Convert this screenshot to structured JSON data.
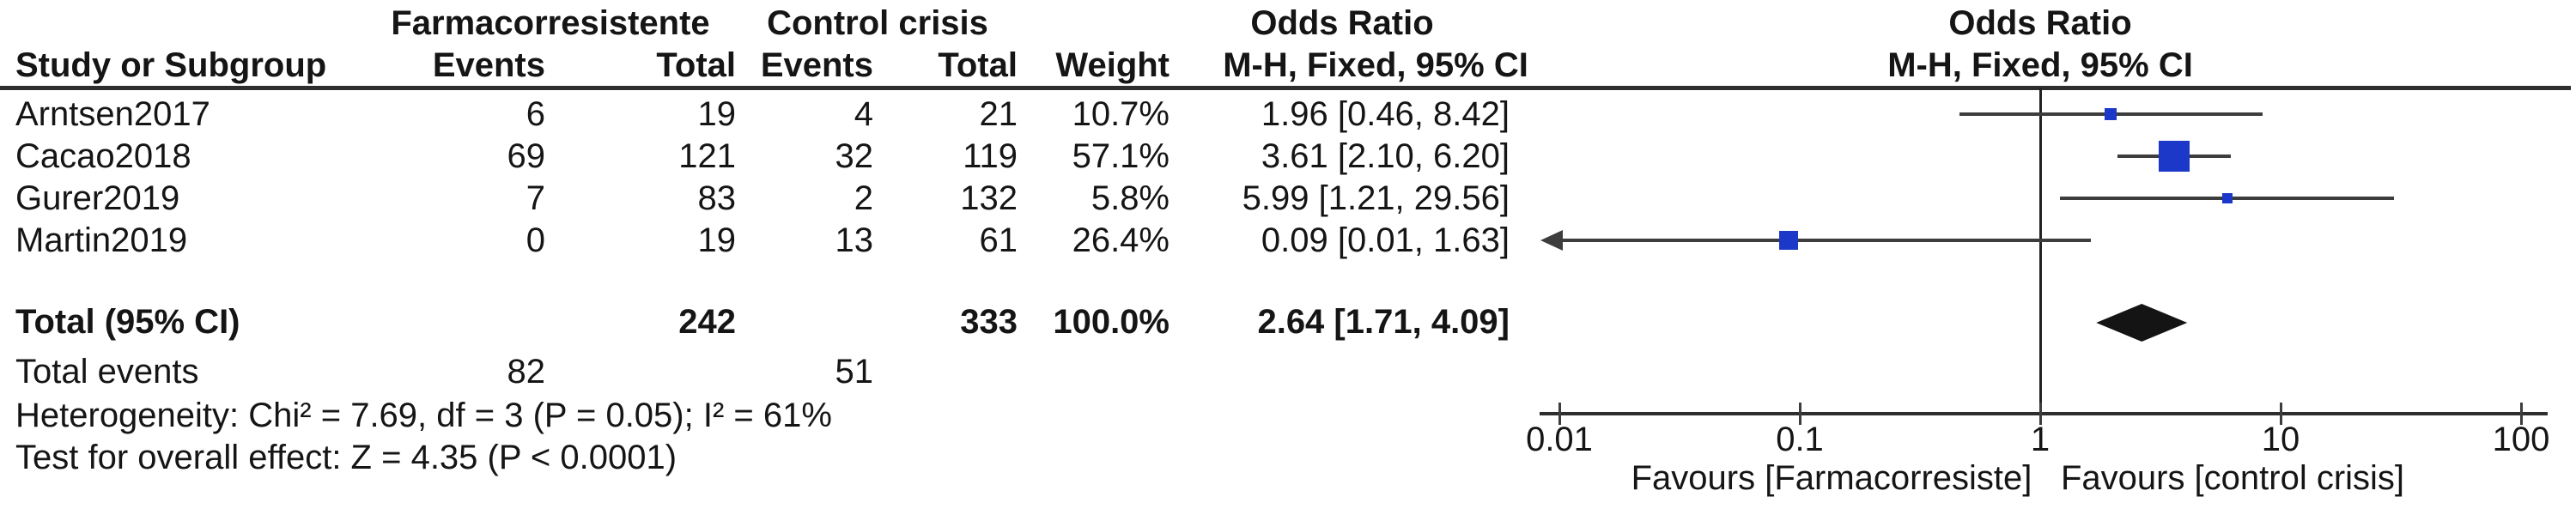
{
  "header": {
    "group_experimental": "Farmacorresistente",
    "group_control": "Control crisis",
    "study_col": "Study or Subgroup",
    "events_col": "Events",
    "total_col": "Total",
    "weight_col": "Weight",
    "or_table_title": "Odds Ratio",
    "or_table_sub": "M-H, Fixed, 95% CI",
    "or_plot_title": "Odds Ratio",
    "or_plot_sub": "M-H, Fixed, 95% CI"
  },
  "table": {
    "rows": [
      {
        "study": "Arntsen2017",
        "e1": "6",
        "t1": "19",
        "e2": "4",
        "t2": "21",
        "weight": "10.7%",
        "ci": "1.96 [0.46, 8.42]"
      },
      {
        "study": "Cacao2018",
        "e1": "69",
        "t1": "121",
        "e2": "32",
        "t2": "119",
        "weight": "57.1%",
        "ci": "3.61 [2.10, 6.20]"
      },
      {
        "study": "Gurer2019",
        "e1": "7",
        "t1": "83",
        "e2": "2",
        "t2": "132",
        "weight": "5.8%",
        "ci": "5.99 [1.21, 29.56]"
      },
      {
        "study": "Martin2019",
        "e1": "0",
        "t1": "19",
        "e2": "13",
        "t2": "61",
        "weight": "26.4%",
        "ci": "0.09 [0.01, 1.63]"
      }
    ],
    "total_row": {
      "label": "Total (95% CI)",
      "t1": "242",
      "t2": "333",
      "weight": "100.0%",
      "ci": "2.64 [1.71, 4.09]"
    },
    "total_events": {
      "label": "Total events",
      "e1": "82",
      "e2": "51"
    },
    "heterogeneity": "Heterogeneity: Chi² = 7.69, df = 3 (P = 0.05); I² = 61%",
    "overall_effect": "Test for overall effect: Z = 4.35 (P < 0.0001)"
  },
  "axis": {
    "tick_labels": [
      "0.01",
      "0.1",
      "1",
      "10",
      "100"
    ],
    "favours_left": "Favours [Farmacorresiste]",
    "favours_right": "Favours [control crisis]"
  },
  "colors": {
    "square_blue": "#1c38c8",
    "line_gray": "#3d3d3d",
    "diamond_black": "#141414"
  },
  "chart_data": {
    "type": "forest",
    "effect_measure": "Odds Ratio, M-H, Fixed, 95% CI",
    "x_scale": "log10",
    "x_ticks": [
      0.01,
      0.1,
      1,
      10,
      100
    ],
    "xlim": [
      0.01,
      100
    ],
    "reference_line": 1,
    "studies": [
      {
        "name": "Arntsen2017",
        "or": 1.96,
        "ci_low": 0.46,
        "ci_high": 8.42,
        "weight_pct": 10.7,
        "arrow_low": false
      },
      {
        "name": "Cacao2018",
        "or": 3.61,
        "ci_low": 2.1,
        "ci_high": 6.2,
        "weight_pct": 57.1,
        "arrow_low": false
      },
      {
        "name": "Gurer2019",
        "or": 5.99,
        "ci_low": 1.21,
        "ci_high": 29.56,
        "weight_pct": 5.8,
        "arrow_low": false
      },
      {
        "name": "Martin2019",
        "or": 0.09,
        "ci_low": 0.01,
        "ci_high": 1.63,
        "weight_pct": 26.4,
        "arrow_low": true
      }
    ],
    "total": {
      "label": "Total (95% CI)",
      "or": 2.64,
      "ci_low": 1.71,
      "ci_high": 4.09,
      "weight_pct": 100.0
    }
  }
}
